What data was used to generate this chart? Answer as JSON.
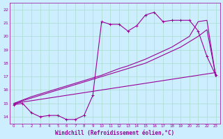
{
  "xlabel": "Windchill (Refroidissement éolien,°C)",
  "bg_color": "#cceeff",
  "grid_color": "#aaddcc",
  "line_color": "#990099",
  "x_ticks": [
    0,
    1,
    2,
    3,
    4,
    5,
    6,
    7,
    8,
    9,
    10,
    11,
    12,
    13,
    14,
    15,
    16,
    17,
    18,
    19,
    20,
    21,
    22,
    23
  ],
  "y_ticks": [
    14,
    15,
    16,
    17,
    18,
    19,
    20,
    21,
    22
  ],
  "ylim": [
    13.5,
    22.5
  ],
  "xlim": [
    -0.5,
    23.5
  ],
  "series1_x": [
    0,
    1,
    2,
    3,
    4,
    5,
    6,
    7,
    8,
    9,
    10,
    11,
    12,
    13,
    14,
    15,
    16,
    17,
    18,
    19,
    20,
    21,
    22,
    23
  ],
  "series1_y": [
    14.9,
    15.0,
    14.3,
    14.0,
    14.1,
    14.1,
    13.8,
    13.8,
    14.1,
    15.6,
    21.1,
    20.9,
    20.9,
    20.4,
    20.8,
    21.6,
    21.8,
    21.1,
    21.2,
    21.2,
    21.2,
    20.4,
    18.5,
    17.1
  ],
  "series2_x": [
    0,
    1,
    2,
    3,
    4,
    5,
    6,
    7,
    8,
    9,
    10,
    11,
    12,
    13,
    14,
    15,
    16,
    17,
    18,
    19,
    20,
    21,
    22,
    23
  ],
  "series2_y": [
    14.9,
    15.2,
    15.4,
    15.6,
    15.8,
    16.0,
    16.2,
    16.4,
    16.6,
    16.8,
    17.0,
    17.2,
    17.4,
    17.6,
    17.8,
    18.0,
    18.3,
    18.6,
    18.9,
    19.2,
    19.6,
    20.0,
    20.5,
    17.1
  ],
  "series3_x": [
    0,
    1,
    2,
    3,
    4,
    5,
    6,
    7,
    8,
    9,
    10,
    11,
    12,
    13,
    14,
    15,
    16,
    17,
    18,
    19,
    20,
    21,
    22,
    23
  ],
  "series3_y": [
    15.0,
    15.25,
    15.5,
    15.7,
    15.9,
    16.1,
    16.3,
    16.5,
    16.7,
    16.9,
    17.1,
    17.35,
    17.6,
    17.8,
    18.05,
    18.3,
    18.6,
    18.9,
    19.2,
    19.6,
    20.0,
    21.1,
    21.2,
    17.0
  ],
  "series4_x": [
    0,
    1,
    2,
    3,
    4,
    5,
    6,
    7,
    8,
    9,
    10,
    11,
    12,
    13,
    14,
    15,
    16,
    17,
    18,
    19,
    20,
    21,
    22,
    23
  ],
  "series4_y": [
    15.0,
    15.1,
    15.2,
    15.3,
    15.4,
    15.5,
    15.6,
    15.7,
    15.8,
    15.9,
    16.0,
    16.1,
    16.2,
    16.3,
    16.4,
    16.5,
    16.6,
    16.7,
    16.8,
    16.9,
    17.0,
    17.1,
    17.2,
    17.3
  ]
}
